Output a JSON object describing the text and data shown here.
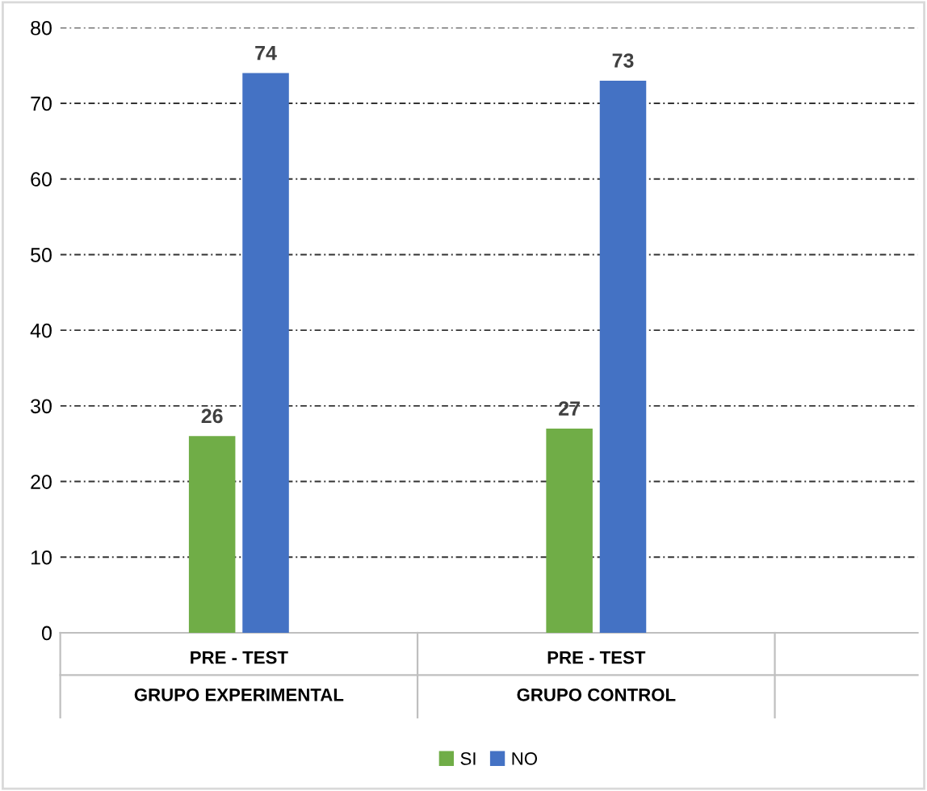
{
  "chart_data": {
    "type": "bar",
    "categories": [
      "PRE - TEST",
      "PRE - TEST"
    ],
    "series": [
      {
        "name": "SI",
        "color": "#70ad47",
        "values": [
          26,
          27
        ]
      },
      {
        "name": "NO",
        "color": "#4472c4",
        "values": [
          74,
          73
        ]
      }
    ],
    "annotations": [
      "GRUPO EXPERIMENTAL",
      "GRUPO CONTROL"
    ],
    "ylim": [
      0,
      80
    ],
    "yticks": [
      0,
      10,
      20,
      30,
      40,
      50,
      60,
      70,
      80
    ],
    "grid": "y",
    "legend": "bottom",
    "data_labels": true
  }
}
